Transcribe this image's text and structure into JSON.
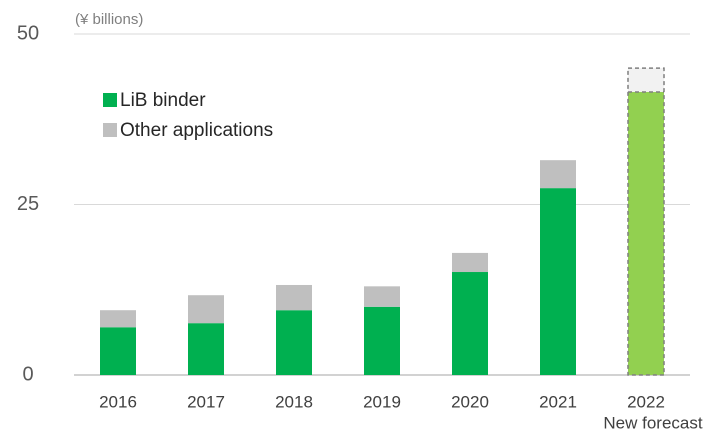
{
  "chart_data": {
    "type": "stacked_bar",
    "unit_label": "(¥ billions)",
    "categories": [
      "2016",
      "2017",
      "2018",
      "2019",
      "2020",
      "2021",
      "2022"
    ],
    "annotation": "New forecast",
    "series": [
      {
        "name": "LiB binder",
        "color": "#00b050",
        "colors": [
          "#00b050",
          "#00b050",
          "#00b050",
          "#00b050",
          "#00b050",
          "#00b050",
          "#92d050"
        ],
        "values": [
          7.0,
          7.6,
          9.5,
          10.0,
          15.1,
          27.4,
          41.5
        ]
      },
      {
        "name": "Other applications",
        "color": "#bfbfbf",
        "colors": [
          "#bfbfbf",
          "#bfbfbf",
          "#bfbfbf",
          "#bfbfbf",
          "#bfbfbf",
          "#bfbfbf",
          "#f2f2f2"
        ],
        "values": [
          2.5,
          4.1,
          3.7,
          3.0,
          2.8,
          4.1,
          3.5
        ]
      }
    ],
    "ylim": [
      0,
      50
    ],
    "yticks": [
      0,
      25,
      50
    ],
    "grid": true,
    "legend": "upper left"
  }
}
